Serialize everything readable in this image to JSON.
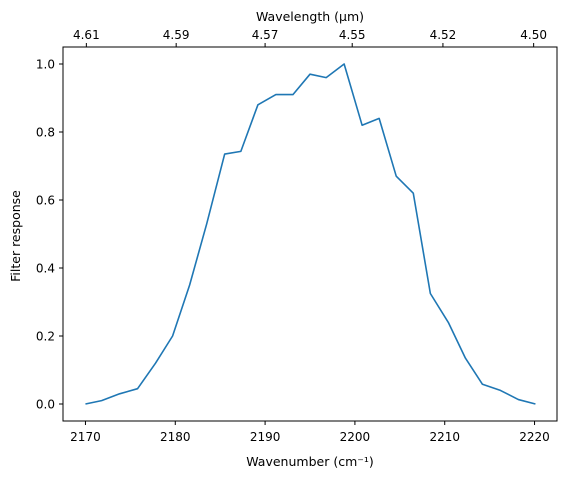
{
  "chart_data": {
    "type": "line",
    "xlabel": "Wavenumber (cm⁻¹)",
    "ylabel": "Filter response",
    "top_xlabel": "Wavelength (μm)",
    "xlim": [
      2167.5,
      2222.5
    ],
    "ylim": [
      -0.05,
      1.05
    ],
    "x_ticks": [
      2170,
      2180,
      2190,
      2200,
      2210,
      2220
    ],
    "x_tick_labels": [
      "2170",
      "2180",
      "2190",
      "2200",
      "2210",
      "2220"
    ],
    "y_ticks": [
      0.0,
      0.2,
      0.4,
      0.6,
      0.8,
      1.0
    ],
    "y_tick_labels": [
      "0.0",
      "0.2",
      "0.4",
      "0.6",
      "0.8",
      "1.0"
    ],
    "top_ticks": [
      {
        "label": "4.61",
        "at": 2170.1
      },
      {
        "label": "4.59",
        "at": 2180.1
      },
      {
        "label": "4.57",
        "at": 2190.0
      },
      {
        "label": "4.55",
        "at": 2199.7
      },
      {
        "label": "4.52",
        "at": 2209.8
      },
      {
        "label": "4.50",
        "at": 2219.9
      }
    ],
    "grid": false,
    "series": [
      {
        "color": "#1f77b4",
        "x": [
          2170.0,
          2171.8,
          2173.8,
          2175.8,
          2177.8,
          2179.7,
          2181.6,
          2183.5,
          2185.5,
          2187.3,
          2189.2,
          2191.2,
          2193.1,
          2195.0,
          2196.8,
          2198.8,
          2200.8,
          2202.7,
          2204.6,
          2206.5,
          2208.4,
          2210.4,
          2212.3,
          2214.2,
          2216.2,
          2218.2,
          2220.1
        ],
        "y": [
          0.0,
          0.01,
          0.03,
          0.045,
          0.12,
          0.2,
          0.35,
          0.53,
          0.735,
          0.743,
          0.88,
          0.91,
          0.91,
          0.97,
          0.96,
          1.0,
          0.82,
          0.84,
          0.67,
          0.62,
          0.325,
          0.24,
          0.135,
          0.058,
          0.04,
          0.013,
          0.0
        ]
      }
    ]
  }
}
